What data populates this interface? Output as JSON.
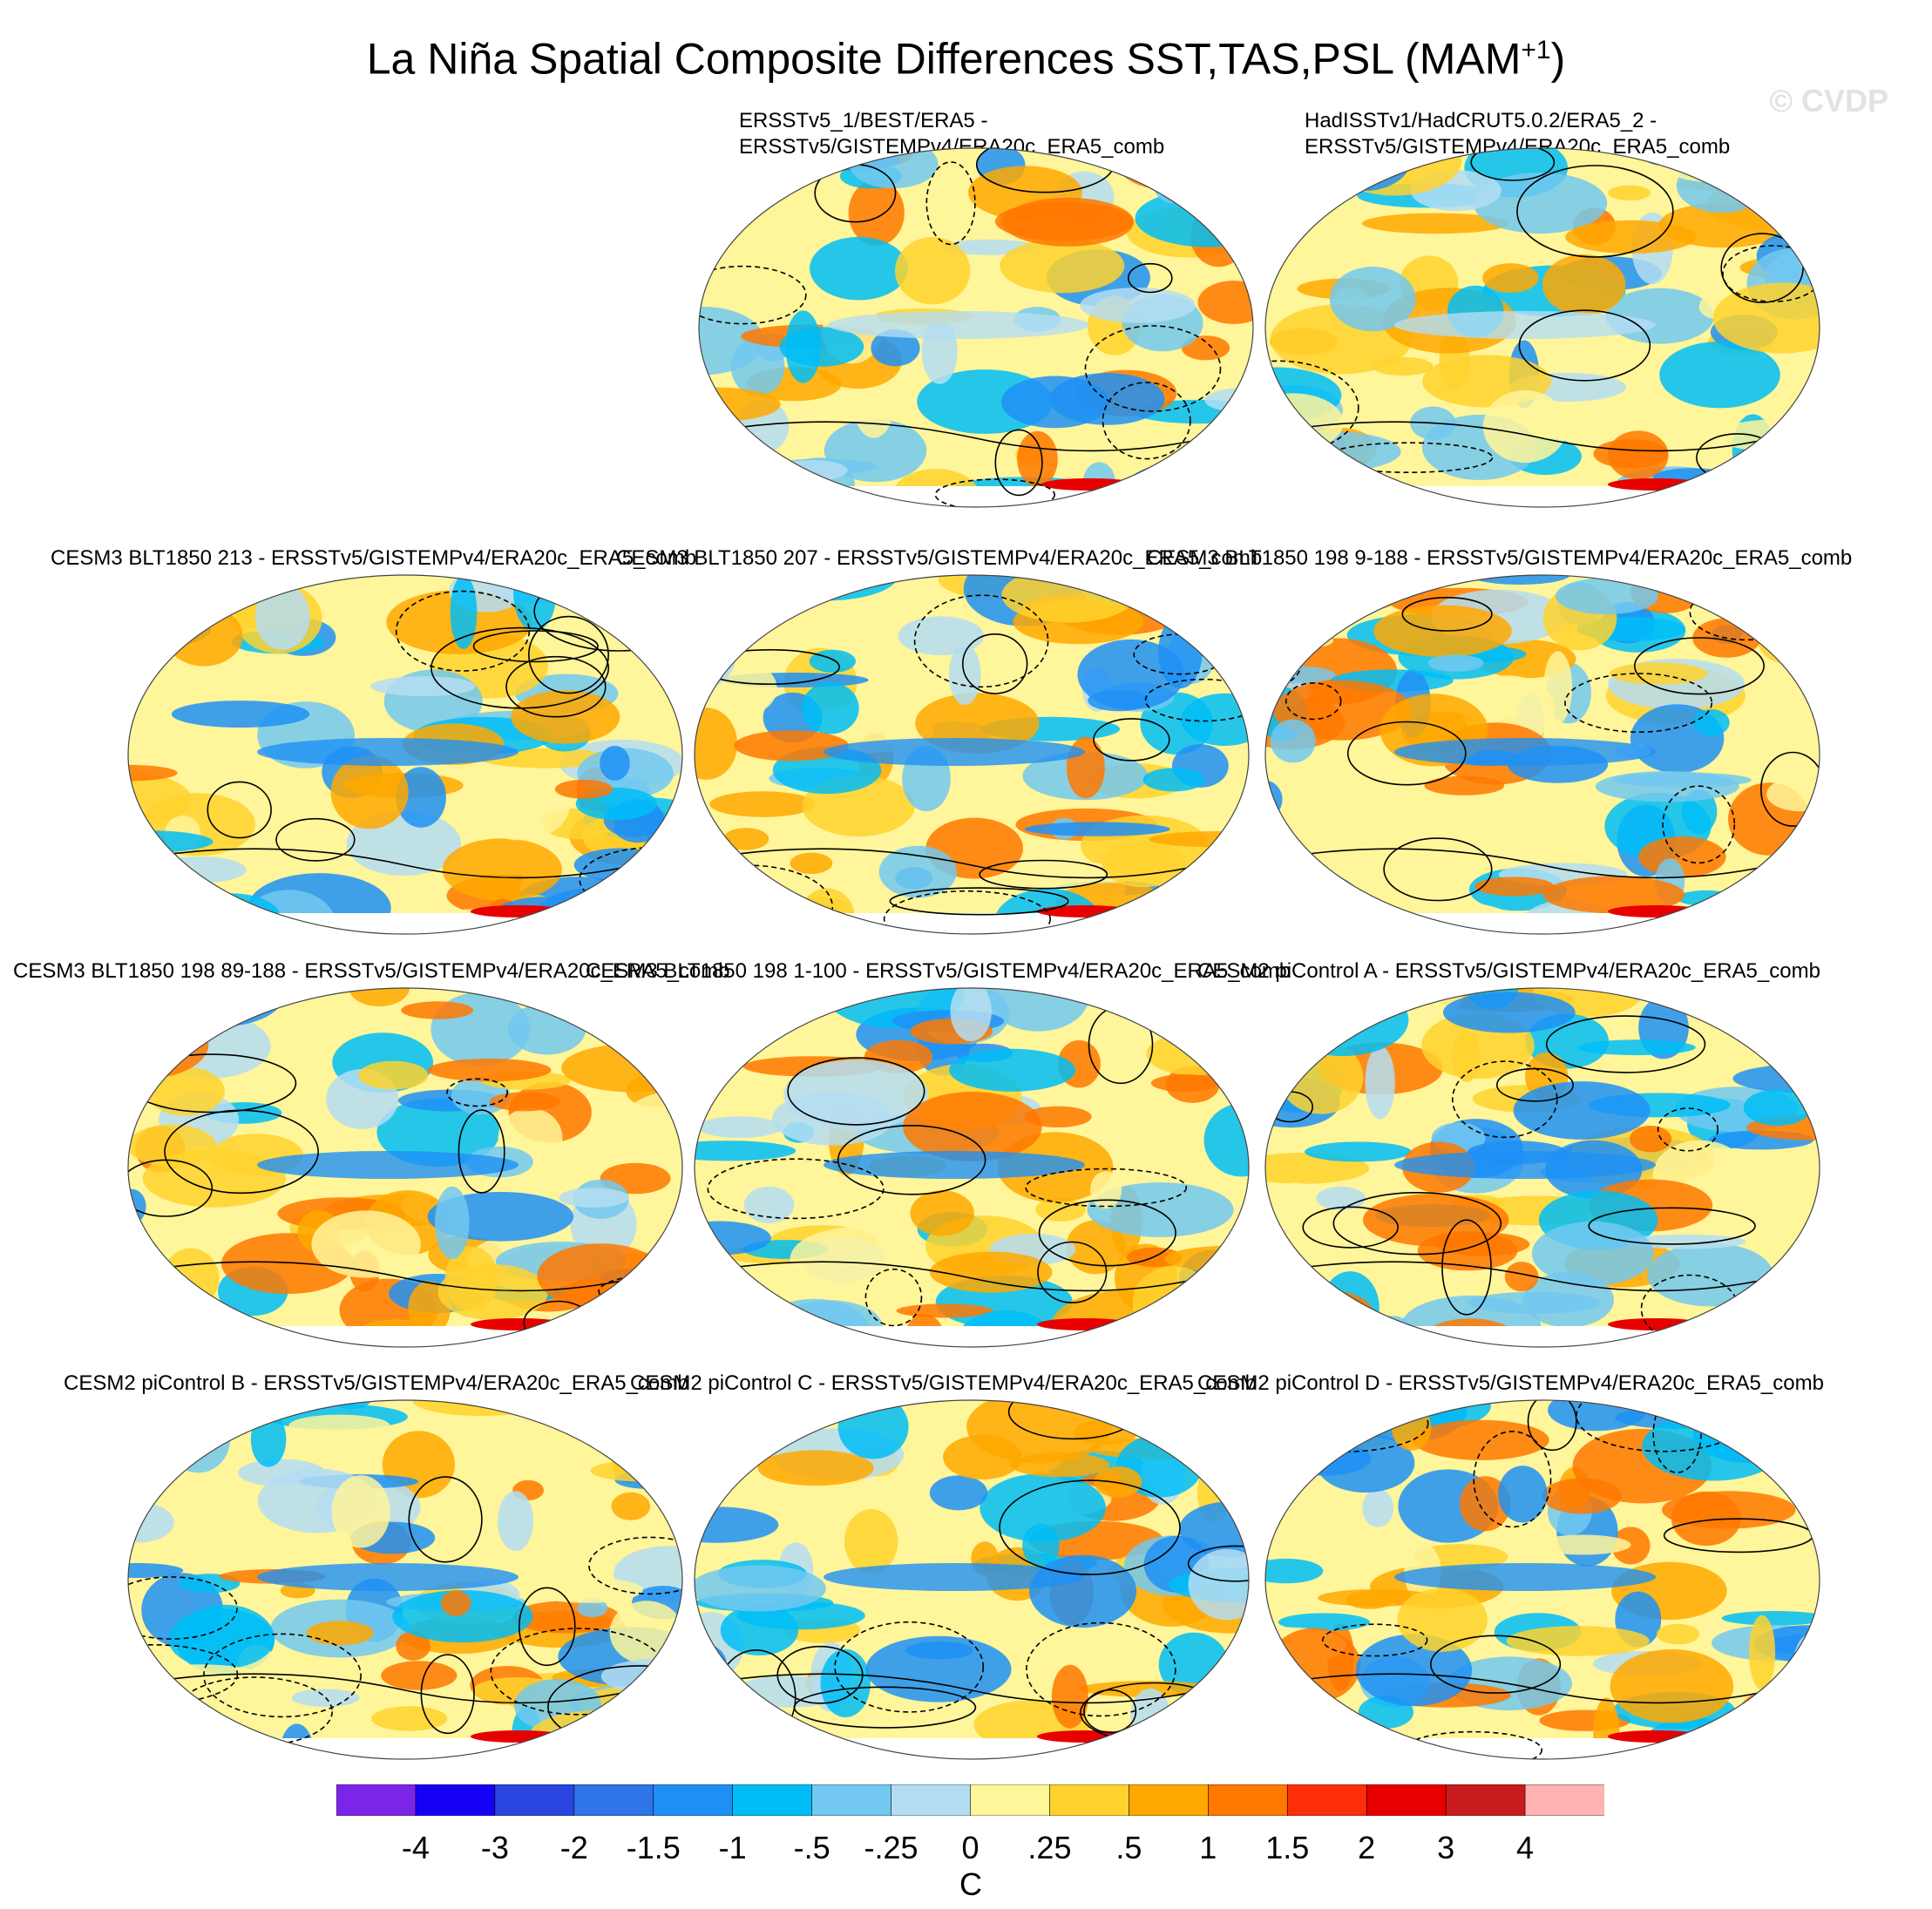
{
  "figure": {
    "title": "La Niña Spatial Composite Differences SST,TAS,PSL (MAM",
    "title_sup": "+1",
    "title_close": ")",
    "watermark": "© CVDP"
  },
  "panels": [
    {
      "line1": "ERSSTv5_1/BEST/ERA5 -",
      "line2": "ERSSTv5/GISTEMPv4/ERA20c_ERA5_comb"
    },
    {
      "line1": "HadISSTv1/HadCRUT5.0.2/ERA5_2 -",
      "line2": "ERSSTv5/GISTEMPv4/ERA20c_ERA5_comb"
    },
    {
      "line1": "CESM3 BLT1850 213 - ERSSTv5/GISTEMPv4/ERA20c_ERA5_comb"
    },
    {
      "line1": "CESM3 BLT1850 207 - ERSSTv5/GISTEMPv4/ERA20c_ERA5_comb"
    },
    {
      "line1": "CESM3 BLT1850 198 9-188 - ERSSTv5/GISTEMPv4/ERA20c_ERA5_comb"
    },
    {
      "line1": "CESM3 BLT1850 198 89-188 - ERSSTv5/GISTEMPv4/ERA20c_ERA5_comb"
    },
    {
      "line1": "CESM3 BLT1850 198 1-100 - ERSSTv5/GISTEMPv4/ERA20c_ERA5_comb"
    },
    {
      "line1": "CESM2 piControl A - ERSSTv5/GISTEMPv4/ERA20c_ERA5_comb"
    },
    {
      "line1": "CESM2 piControl B - ERSSTv5/GISTEMPv4/ERA20c_ERA5_comb"
    },
    {
      "line1": "CESM2 piControl C - ERSSTv5/GISTEMPv4/ERA20c_ERA5_comb"
    },
    {
      "line1": "CESM2 piControl D - ERSSTv5/GISTEMPv4/ERA20c_ERA5_comb"
    }
  ],
  "colorbar": {
    "units": "C",
    "ticks": [
      "-4",
      "-3",
      "-2",
      "-1.5",
      "-1",
      "-.5",
      "-.25",
      "0",
      ".25",
      ".5",
      "1",
      "1.5",
      "2",
      "3",
      "4"
    ],
    "colors": [
      "#7b25e8",
      "#1400f5",
      "#2a45e0",
      "#2f75e8",
      "#1e90f5",
      "#00bdf7",
      "#72c8f0",
      "#b4ddf2",
      "#fff59a",
      "#ffd22e",
      "#ffa800",
      "#ff7800",
      "#ff2e0a",
      "#e80000",
      "#c81c1c",
      "#ffb3b3"
    ]
  }
}
